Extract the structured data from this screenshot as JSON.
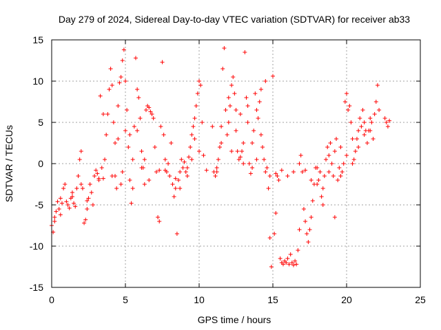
{
  "chart_data": {
    "type": "scatter",
    "title": "Day 279 of 2024, Sidereal Day-to-day VTEC variation (SDTVAR) for receiver ab33",
    "xlabel": "GPS time / hours",
    "ylabel": "SDTVAR / TECUs",
    "xlim": [
      0,
      25
    ],
    "ylim": [
      -15,
      15
    ],
    "xticks": [
      0,
      5,
      10,
      15,
      20,
      25
    ],
    "xtick_labels": [
      "0",
      "5",
      "10",
      "15",
      "20",
      "25"
    ],
    "yticks": [
      -15,
      -10,
      -5,
      0,
      5,
      10,
      15
    ],
    "ytick_labels": [
      "-15",
      "-10",
      "-5",
      "0",
      "5",
      "10",
      "15"
    ],
    "grid": true,
    "marker": "+",
    "color": "#ff0000",
    "series": [
      {
        "name": "ab33",
        "points": [
          [
            0.0,
            -7.5
          ],
          [
            0.1,
            -8.3
          ],
          [
            0.2,
            -7.0
          ],
          [
            0.3,
            -5.8
          ],
          [
            0.4,
            -4.6
          ],
          [
            0.5,
            -5.5
          ],
          [
            0.6,
            -6.2
          ],
          [
            0.7,
            -4.8
          ],
          [
            0.8,
            -3.0
          ],
          [
            0.9,
            -2.5
          ],
          [
            1.0,
            -4.6
          ],
          [
            1.1,
            -5.0
          ],
          [
            1.2,
            -5.4
          ],
          [
            1.3,
            -4.2
          ],
          [
            1.4,
            -3.5
          ],
          [
            1.5,
            -4.8
          ],
          [
            1.6,
            -5.2
          ],
          [
            1.7,
            -3.0
          ],
          [
            1.8,
            -1.5
          ],
          [
            1.9,
            0.5
          ],
          [
            2.0,
            1.5
          ],
          [
            2.1,
            -3.0
          ],
          [
            2.2,
            -7.2
          ],
          [
            2.3,
            -6.8
          ],
          [
            2.4,
            -5.5
          ],
          [
            2.5,
            -4.2
          ],
          [
            2.6,
            -2.5
          ],
          [
            2.7,
            -3.5
          ],
          [
            2.8,
            -5.0
          ],
          [
            2.9,
            -1.5
          ],
          [
            3.0,
            -0.8
          ],
          [
            3.1,
            -1.2
          ],
          [
            3.2,
            -1.8
          ],
          [
            3.3,
            8.2
          ],
          [
            3.4,
            -0.5
          ],
          [
            3.5,
            -1.8
          ],
          [
            3.6,
            0.5
          ],
          [
            3.7,
            3.5
          ],
          [
            3.8,
            6.0
          ],
          [
            3.9,
            9.0
          ],
          [
            4.0,
            11.5
          ],
          [
            4.1,
            9.5
          ],
          [
            4.2,
            5.0
          ],
          [
            4.3,
            -1.5
          ],
          [
            4.4,
            -3.0
          ],
          [
            4.5,
            7.0
          ],
          [
            4.6,
            9.8
          ],
          [
            4.7,
            10.5
          ],
          [
            4.8,
            12.5
          ],
          [
            4.9,
            13.8
          ],
          [
            5.0,
            10.0
          ],
          [
            5.1,
            6.5
          ],
          [
            5.2,
            2.0
          ],
          [
            5.3,
            -2.0
          ],
          [
            5.4,
            -4.8
          ],
          [
            5.5,
            0.5
          ],
          [
            5.6,
            4.5
          ],
          [
            5.7,
            12.8
          ],
          [
            5.8,
            9.0
          ],
          [
            5.9,
            8.0
          ],
          [
            6.0,
            5.5
          ],
          [
            6.1,
            1.5
          ],
          [
            6.2,
            -0.5
          ],
          [
            6.3,
            -2.5
          ],
          [
            6.4,
            6.5
          ],
          [
            6.5,
            7.0
          ],
          [
            6.6,
            6.8
          ],
          [
            6.7,
            6.3
          ],
          [
            6.8,
            6.0
          ],
          [
            6.9,
            5.5
          ],
          [
            7.0,
            2.0
          ],
          [
            7.2,
            -6.5
          ],
          [
            7.3,
            -0.8
          ],
          [
            7.4,
            4.5
          ],
          [
            7.5,
            12.3
          ],
          [
            7.6,
            3.5
          ],
          [
            7.7,
            0.5
          ],
          [
            7.8,
            -1.0
          ],
          [
            7.9,
            0.0
          ],
          [
            8.0,
            -1.5
          ],
          [
            8.1,
            2.5
          ],
          [
            8.2,
            -2.5
          ],
          [
            8.3,
            -4.0
          ],
          [
            8.4,
            -3.0
          ],
          [
            8.5,
            -8.5
          ],
          [
            8.6,
            -2.0
          ],
          [
            8.7,
            -1.0
          ],
          [
            8.8,
            0.5
          ],
          [
            8.9,
            -0.5
          ],
          [
            9.0,
            0.2
          ],
          [
            9.1,
            -1.0
          ],
          [
            9.2,
            -1.5
          ],
          [
            9.3,
            0.8
          ],
          [
            9.4,
            2.0
          ],
          [
            9.5,
            3.5
          ],
          [
            9.6,
            4.5
          ],
          [
            9.7,
            5.5
          ],
          [
            9.8,
            7.0
          ],
          [
            9.9,
            8.5
          ],
          [
            10.0,
            10.0
          ],
          [
            10.1,
            9.5
          ],
          [
            10.2,
            5.0
          ],
          [
            10.3,
            1.0
          ],
          [
            10.5,
            -0.8
          ],
          [
            10.9,
            4.5
          ],
          [
            11.0,
            -1.0
          ],
          [
            11.1,
            -1.5
          ],
          [
            11.2,
            -0.5
          ],
          [
            11.3,
            0.5
          ],
          [
            11.4,
            2.0
          ],
          [
            11.5,
            4.5
          ],
          [
            11.6,
            11.5
          ],
          [
            11.7,
            14.0
          ],
          [
            11.8,
            6.5
          ],
          [
            11.9,
            3.5
          ],
          [
            12.0,
            5.0
          ],
          [
            12.1,
            7.0
          ],
          [
            12.2,
            9.5
          ],
          [
            12.3,
            10.5
          ],
          [
            12.4,
            8.5
          ],
          [
            12.5,
            4.0
          ],
          [
            12.6,
            1.5
          ],
          [
            12.7,
            0.5
          ],
          [
            12.8,
            0.8
          ],
          [
            12.9,
            1.5
          ],
          [
            13.0,
            2.5
          ],
          [
            13.1,
            13.5
          ],
          [
            13.2,
            8.0
          ],
          [
            13.3,
            7.0
          ],
          [
            13.4,
            0.0
          ],
          [
            13.5,
            -1.2
          ],
          [
            13.6,
            -0.5
          ],
          [
            13.7,
            4.0
          ],
          [
            13.8,
            8.5
          ],
          [
            13.9,
            6.5
          ],
          [
            14.0,
            5.5
          ],
          [
            14.1,
            7.5
          ],
          [
            14.2,
            3.5
          ],
          [
            14.3,
            2.0
          ],
          [
            14.4,
            0.5
          ],
          [
            14.5,
            10.0
          ],
          [
            14.6,
            -0.5
          ],
          [
            14.7,
            -3.0
          ],
          [
            14.8,
            -9.0
          ],
          [
            14.9,
            -12.5
          ],
          [
            15.0,
            10.6
          ],
          [
            15.1,
            -8.5
          ],
          [
            15.2,
            -6.0
          ],
          [
            15.3,
            -1.5
          ],
          [
            15.4,
            -2.0
          ],
          [
            15.5,
            -11.5
          ],
          [
            15.6,
            -12.0
          ],
          [
            15.7,
            -12.2
          ],
          [
            15.8,
            -11.8
          ],
          [
            15.9,
            -12.0
          ],
          [
            16.0,
            -11.5
          ],
          [
            16.1,
            -12.2
          ],
          [
            16.2,
            -11.0
          ],
          [
            16.3,
            -12.0
          ],
          [
            16.4,
            -12.3
          ],
          [
            16.5,
            -11.8
          ],
          [
            16.6,
            -12.2
          ],
          [
            16.7,
            -10.5
          ],
          [
            16.8,
            -8.0
          ],
          [
            16.9,
            1.0
          ],
          [
            17.0,
            -1.0
          ],
          [
            17.1,
            -5.5
          ],
          [
            17.2,
            -7.0
          ],
          [
            17.3,
            -8.5
          ],
          [
            17.4,
            -9.5
          ],
          [
            17.5,
            -8.0
          ],
          [
            17.6,
            -6.5
          ],
          [
            17.7,
            -4.5
          ],
          [
            17.8,
            -2.5
          ],
          [
            17.9,
            -0.5
          ],
          [
            18.0,
            -2.5
          ],
          [
            18.1,
            -2.0
          ],
          [
            18.2,
            -1.0
          ],
          [
            18.3,
            -4.0
          ],
          [
            18.4,
            -5.0
          ],
          [
            18.5,
            -1.5
          ],
          [
            18.6,
            0.5
          ],
          [
            18.7,
            2.0
          ],
          [
            18.8,
            1.0
          ],
          [
            18.9,
            2.5
          ],
          [
            19.0,
            0.0
          ],
          [
            19.1,
            -1.5
          ],
          [
            19.2,
            -6.5
          ],
          [
            19.3,
            3.0
          ],
          [
            19.4,
            -2.0
          ],
          [
            19.5,
            -0.5
          ],
          [
            19.6,
            -1.5
          ],
          [
            19.7,
            -1.0
          ],
          [
            19.8,
            0.0
          ],
          [
            19.9,
            7.5
          ],
          [
            20.0,
            8.5
          ],
          [
            20.1,
            6.5
          ],
          [
            20.2,
            7.0
          ],
          [
            20.3,
            5.0
          ],
          [
            20.4,
            3.0
          ],
          [
            20.5,
            0.5
          ],
          [
            20.6,
            1.5
          ],
          [
            20.7,
            3.0
          ],
          [
            20.8,
            4.0
          ],
          [
            20.9,
            5.5
          ],
          [
            21.0,
            4.5
          ],
          [
            21.1,
            6.5
          ],
          [
            21.2,
            5.0
          ],
          [
            21.3,
            4.0
          ],
          [
            21.4,
            2.5
          ],
          [
            21.5,
            4.0
          ],
          [
            21.6,
            5.5
          ],
          [
            21.7,
            5.0
          ],
          [
            21.8,
            3.0
          ],
          [
            21.9,
            6.0
          ],
          [
            22.0,
            7.5
          ],
          [
            22.1,
            9.5
          ],
          [
            22.2,
            6.5
          ],
          [
            22.6,
            5.5
          ],
          [
            22.7,
            5.0
          ],
          [
            22.8,
            4.5
          ],
          [
            22.9,
            5.2
          ],
          [
            0.2,
            -6.5
          ],
          [
            0.6,
            -4.2
          ],
          [
            1.4,
            -4.0
          ],
          [
            2.0,
            -2.5
          ],
          [
            2.4,
            -4.5
          ],
          [
            3.2,
            -2.0
          ],
          [
            3.5,
            6.0
          ],
          [
            4.1,
            -1.5
          ],
          [
            4.3,
            2.5
          ],
          [
            4.5,
            3.0
          ],
          [
            4.7,
            -2.5
          ],
          [
            4.8,
            -1.0
          ],
          [
            5.0,
            4.0
          ],
          [
            5.3,
            3.5
          ],
          [
            5.5,
            -3.0
          ],
          [
            5.8,
            4.0
          ],
          [
            6.1,
            -0.5
          ],
          [
            6.3,
            0.5
          ],
          [
            6.6,
            -2.0
          ],
          [
            7.1,
            -1.0
          ],
          [
            7.3,
            -7.0
          ],
          [
            7.7,
            -0.8
          ],
          [
            8.4,
            -1.8
          ],
          [
            8.7,
            -3.0
          ],
          [
            9.2,
            -0.5
          ],
          [
            9.5,
            0.5
          ],
          [
            9.7,
            3.0
          ],
          [
            10.0,
            1.5
          ],
          [
            11.2,
            -1.0
          ],
          [
            11.5,
            2.5
          ],
          [
            12.0,
            8.0
          ],
          [
            12.2,
            1.5
          ],
          [
            12.5,
            6.5
          ],
          [
            12.8,
            6.0
          ],
          [
            13.0,
            0.0
          ],
          [
            13.3,
            5.0
          ],
          [
            13.6,
            2.5
          ],
          [
            13.9,
            0.5
          ],
          [
            14.2,
            9.0
          ],
          [
            14.5,
            -1.0
          ],
          [
            14.8,
            -1.5
          ],
          [
            15.2,
            -1.2
          ],
          [
            15.6,
            -0.8
          ],
          [
            16.0,
            -1.5
          ],
          [
            16.4,
            -1.0
          ],
          [
            16.8,
            0.0
          ],
          [
            17.2,
            -0.8
          ],
          [
            17.6,
            -2.0
          ],
          [
            18.0,
            -0.5
          ],
          [
            18.4,
            -3.0
          ],
          [
            18.8,
            -1.0
          ],
          [
            19.2,
            1.5
          ],
          [
            19.6,
            2.0
          ],
          [
            20.0,
            1.0
          ],
          [
            20.4,
            0.0
          ],
          [
            20.8,
            2.0
          ],
          [
            21.2,
            3.5
          ],
          [
            21.6,
            4.0
          ]
        ]
      }
    ]
  }
}
